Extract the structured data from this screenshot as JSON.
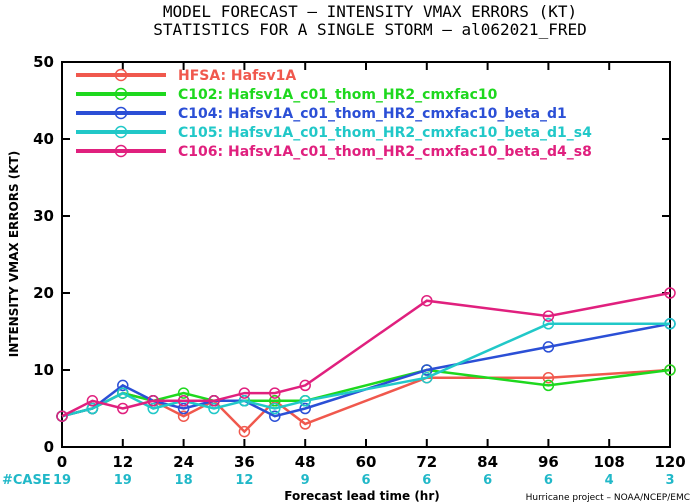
{
  "title": {
    "line1": "MODEL FORECAST – INTENSITY VMAX ERRORS (KT)",
    "line2": "STATISTICS FOR A SINGLE STORM – al062021_FRED"
  },
  "chart_data": {
    "type": "line",
    "xlabel": "Forecast lead time (hr)",
    "ylabel": "INTENSITY VMAX ERRORS (KT)",
    "xlim": [
      0,
      120
    ],
    "ylim": [
      0,
      50
    ],
    "xticks": [
      0,
      12,
      24,
      36,
      48,
      60,
      72,
      84,
      96,
      108,
      120
    ],
    "yticks": [
      0,
      10,
      20,
      30,
      40,
      50
    ],
    "legend_position": "top-left",
    "grid": false,
    "series": [
      {
        "name": "HFSA: Hafsv1A",
        "color": "#f0584d",
        "x": [
          0,
          6,
          12,
          18,
          24,
          30,
          36,
          42,
          48,
          72,
          96,
          120
        ],
        "y": [
          4,
          5,
          7,
          6,
          4,
          6,
          2,
          6,
          3,
          9,
          9,
          10
        ]
      },
      {
        "name": "C102: Hafsv1A_c01_thom_HR2_cmxfac10",
        "color": "#1ed81e",
        "x": [
          0,
          6,
          12,
          18,
          24,
          30,
          36,
          42,
          48,
          72,
          96,
          120
        ],
        "y": [
          4,
          5,
          7,
          6,
          7,
          6,
          6,
          6,
          6,
          10,
          8,
          10
        ]
      },
      {
        "name": "C104: Hafsv1A_c01_thom_HR2_cmxfac10_beta_d1",
        "color": "#2b4fd6",
        "x": [
          0,
          6,
          12,
          18,
          24,
          30,
          36,
          42,
          48,
          72,
          96,
          120
        ],
        "y": [
          4,
          5,
          8,
          6,
          5,
          6,
          6,
          4,
          5,
          10,
          13,
          16
        ]
      },
      {
        "name": "C105: Hafsv1A_c01_thom_HR2_cmxfac10_beta_d1_s4",
        "color": "#21c8c8",
        "x": [
          0,
          6,
          12,
          18,
          24,
          30,
          36,
          42,
          48,
          72,
          96,
          120
        ],
        "y": [
          4,
          5,
          7,
          5,
          6,
          5,
          6,
          5,
          6,
          9,
          16,
          16
        ]
      },
      {
        "name": "C106: Hafsv1A_c01_thom_HR2_cmxfac10_beta_d4_s8",
        "color": "#e0207e",
        "x": [
          0,
          6,
          12,
          18,
          24,
          30,
          36,
          42,
          48,
          72,
          96,
          120
        ],
        "y": [
          4,
          6,
          5,
          6,
          6,
          6,
          7,
          7,
          8,
          19,
          17,
          20
        ]
      }
    ],
    "case_label": "#CASE",
    "cases": [
      "19",
      "19",
      "18",
      "12",
      "9",
      "6",
      "6",
      "6",
      "6",
      "4",
      "3"
    ],
    "credit": "Hurricane project – NOAA/NCEP/EMC"
  }
}
